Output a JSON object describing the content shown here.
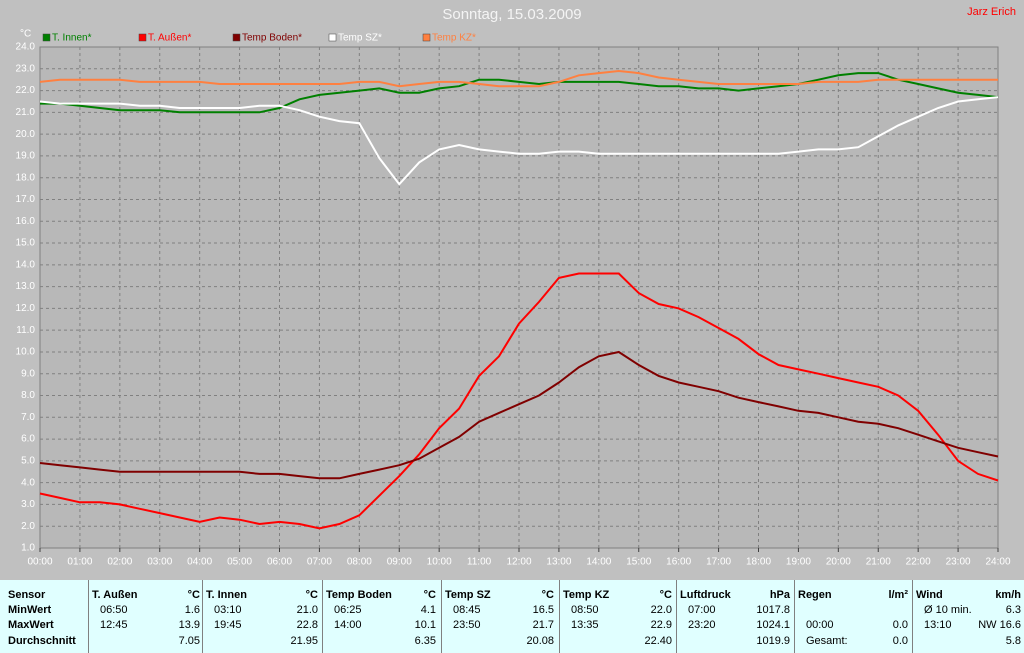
{
  "chart_data": {
    "type": "line",
    "title": "Sonntag, 15.03.2009",
    "author": "Jarz Erich",
    "y_label": "°C",
    "x": [
      0,
      0.5,
      1,
      1.5,
      2,
      2.5,
      3,
      3.5,
      4,
      4.5,
      5,
      5.5,
      6,
      6.5,
      7,
      7.5,
      8,
      8.5,
      9,
      9.5,
      10,
      10.5,
      11,
      11.5,
      12,
      12.5,
      13,
      13.5,
      14,
      14.5,
      15,
      15.5,
      16,
      16.5,
      17,
      17.5,
      18,
      18.5,
      19,
      19.5,
      20,
      20.5,
      21,
      21.5,
      22,
      22.5,
      23,
      23.5,
      24
    ],
    "xlim": [
      0,
      24
    ],
    "xticks": [
      {
        "value": 0,
        "label": "00:00"
      },
      {
        "value": 1,
        "label": "01:00"
      },
      {
        "value": 2,
        "label": "02:00"
      },
      {
        "value": 3,
        "label": "03:00"
      },
      {
        "value": 4,
        "label": "04:00"
      },
      {
        "value": 5,
        "label": "05:00"
      },
      {
        "value": 6,
        "label": "06:00"
      },
      {
        "value": 7,
        "label": "07:00"
      },
      {
        "value": 8,
        "label": "08:00"
      },
      {
        "value": 9,
        "label": "09:00"
      },
      {
        "value": 10,
        "label": "10:00"
      },
      {
        "value": 11,
        "label": "11:00"
      },
      {
        "value": 12,
        "label": "12:00"
      },
      {
        "value": 13,
        "label": "13:00"
      },
      {
        "value": 14,
        "label": "14:00"
      },
      {
        "value": 15,
        "label": "15:00"
      },
      {
        "value": 16,
        "label": "16:00"
      },
      {
        "value": 17,
        "label": "17:00"
      },
      {
        "value": 18,
        "label": "18:00"
      },
      {
        "value": 19,
        "label": "19:00"
      },
      {
        "value": 20,
        "label": "20:00"
      },
      {
        "value": 21,
        "label": "21:00"
      },
      {
        "value": 22,
        "label": "22:00"
      },
      {
        "value": 23,
        "label": "23:00"
      },
      {
        "value": 24,
        "label": "24:00"
      }
    ],
    "ylim": [
      1,
      24
    ],
    "yticks": [
      {
        "value": 1,
        "label": "1.0"
      },
      {
        "value": 2,
        "label": "2.0"
      },
      {
        "value": 3,
        "label": "3.0"
      },
      {
        "value": 4,
        "label": "4.0"
      },
      {
        "value": 5,
        "label": "5.0"
      },
      {
        "value": 6,
        "label": "6.0"
      },
      {
        "value": 7,
        "label": "7.0"
      },
      {
        "value": 8,
        "label": "8.0"
      },
      {
        "value": 9,
        "label": "9.0"
      },
      {
        "value": 10,
        "label": "10.0"
      },
      {
        "value": 11,
        "label": "11.0"
      },
      {
        "value": 12,
        "label": "12.0"
      },
      {
        "value": 13,
        "label": "13.0"
      },
      {
        "value": 14,
        "label": "14.0"
      },
      {
        "value": 15,
        "label": "15.0"
      },
      {
        "value": 16,
        "label": "16.0"
      },
      {
        "value": 17,
        "label": "17.0"
      },
      {
        "value": 18,
        "label": "18.0"
      },
      {
        "value": 19,
        "label": "19.0"
      },
      {
        "value": 20,
        "label": "20.0"
      },
      {
        "value": 21,
        "label": "21.0"
      },
      {
        "value": 22,
        "label": "22.0"
      },
      {
        "value": 23,
        "label": "23.0"
      },
      {
        "value": 24,
        "label": "24.0"
      }
    ],
    "grid": true,
    "series": [
      {
        "name": "T. Innen*",
        "color": "#008000",
        "values": [
          21.4,
          21.4,
          21.3,
          21.2,
          21.1,
          21.1,
          21.1,
          21.0,
          21.0,
          21.0,
          21.0,
          21.0,
          21.2,
          21.6,
          21.8,
          21.9,
          22.0,
          22.1,
          21.9,
          21.9,
          22.1,
          22.2,
          22.5,
          22.5,
          22.4,
          22.3,
          22.4,
          22.4,
          22.4,
          22.4,
          22.3,
          22.2,
          22.2,
          22.1,
          22.1,
          22.0,
          22.1,
          22.2,
          22.3,
          22.5,
          22.7,
          22.8,
          22.8,
          22.5,
          22.3,
          22.1,
          21.9,
          21.8,
          21.7
        ]
      },
      {
        "name": "T. Außen*",
        "color": "#ff0000",
        "values": [
          3.5,
          3.3,
          3.1,
          3.1,
          3.0,
          2.8,
          2.6,
          2.4,
          2.2,
          2.4,
          2.3,
          2.1,
          2.2,
          2.1,
          1.9,
          2.1,
          2.5,
          3.4,
          4.3,
          5.3,
          6.5,
          7.4,
          8.9,
          9.8,
          11.3,
          12.3,
          13.4,
          13.6,
          13.6,
          13.6,
          12.7,
          12.2,
          12.0,
          11.6,
          11.1,
          10.6,
          9.9,
          9.4,
          9.2,
          9.0,
          8.8,
          8.6,
          8.4,
          8.0,
          7.3,
          6.2,
          5.0,
          4.4,
          4.1
        ]
      },
      {
        "name": "Temp Boden*",
        "color": "#800000",
        "values": [
          4.9,
          4.8,
          4.7,
          4.6,
          4.5,
          4.5,
          4.5,
          4.5,
          4.5,
          4.5,
          4.5,
          4.4,
          4.4,
          4.3,
          4.2,
          4.2,
          4.4,
          4.6,
          4.8,
          5.1,
          5.6,
          6.1,
          6.8,
          7.2,
          7.6,
          8.0,
          8.6,
          9.3,
          9.8,
          10.0,
          9.4,
          8.9,
          8.6,
          8.4,
          8.2,
          7.9,
          7.7,
          7.5,
          7.3,
          7.2,
          7.0,
          6.8,
          6.7,
          6.5,
          6.2,
          5.9,
          5.6,
          5.4,
          5.2
        ]
      },
      {
        "name": "Temp SZ*",
        "color": "#ffffff",
        "values": [
          21.5,
          21.4,
          21.4,
          21.4,
          21.4,
          21.3,
          21.3,
          21.2,
          21.2,
          21.2,
          21.2,
          21.3,
          21.3,
          21.1,
          20.8,
          20.6,
          20.5,
          18.9,
          17.7,
          18.7,
          19.3,
          19.5,
          19.3,
          19.2,
          19.1,
          19.1,
          19.2,
          19.2,
          19.1,
          19.1,
          19.1,
          19.1,
          19.1,
          19.1,
          19.1,
          19.1,
          19.1,
          19.1,
          19.2,
          19.3,
          19.3,
          19.4,
          19.9,
          20.4,
          20.8,
          21.2,
          21.5,
          21.6,
          21.7
        ]
      },
      {
        "name": "Temp KZ*",
        "color": "#ff8040",
        "values": [
          22.4,
          22.5,
          22.5,
          22.5,
          22.5,
          22.4,
          22.4,
          22.4,
          22.4,
          22.3,
          22.3,
          22.3,
          22.3,
          22.3,
          22.3,
          22.3,
          22.4,
          22.4,
          22.2,
          22.3,
          22.4,
          22.4,
          22.3,
          22.2,
          22.2,
          22.2,
          22.4,
          22.7,
          22.8,
          22.9,
          22.8,
          22.6,
          22.5,
          22.4,
          22.3,
          22.3,
          22.3,
          22.3,
          22.3,
          22.4,
          22.4,
          22.4,
          22.5,
          22.5,
          22.5,
          22.5,
          22.5,
          22.5,
          22.5
        ]
      }
    ]
  },
  "table": {
    "sensor_label": "Sensor",
    "row_labels": [
      "MinWert",
      "MaxWert",
      "Durchschnitt"
    ],
    "columns": [
      {
        "name": "T. Außen",
        "unit": "°C"
      },
      {
        "name": "T. Innen",
        "unit": "°C"
      },
      {
        "name": "Temp Boden",
        "unit": "°C"
      },
      {
        "name": "Temp SZ",
        "unit": "°C"
      },
      {
        "name": "Temp KZ",
        "unit": "°C"
      },
      {
        "name": "Luftdruck",
        "unit": "hPa"
      },
      {
        "name": "Regen",
        "unit": "l/m²"
      },
      {
        "name": "Wind",
        "unit": "km/h"
      }
    ],
    "cells": [
      [
        [
          "06:50",
          "1.6"
        ],
        [
          "03:10",
          "21.0"
        ],
        [
          "06:25",
          "4.1"
        ],
        [
          "08:45",
          "16.5"
        ],
        [
          "08:50",
          "22.0"
        ],
        [
          "07:00",
          "1017.8"
        ],
        [
          null,
          null
        ],
        [
          "Ø 10 min.",
          "6.3"
        ]
      ],
      [
        [
          "12:45",
          "13.9"
        ],
        [
          "19:45",
          "22.8"
        ],
        [
          "14:00",
          "10.1"
        ],
        [
          "23:50",
          "21.7"
        ],
        [
          "13:35",
          "22.9"
        ],
        [
          "23:20",
          "1024.1"
        ],
        [
          "00:00",
          "0.0"
        ],
        [
          "13:10",
          "NW 16.6"
        ]
      ],
      [
        [
          null,
          "7.05"
        ],
        [
          null,
          "21.95"
        ],
        [
          null,
          "6.35"
        ],
        [
          null,
          "20.08"
        ],
        [
          null,
          "22.40"
        ],
        [
          null,
          "1019.9"
        ],
        [
          "Gesamt:",
          "0.0"
        ],
        [
          null,
          "5.8"
        ]
      ]
    ]
  }
}
